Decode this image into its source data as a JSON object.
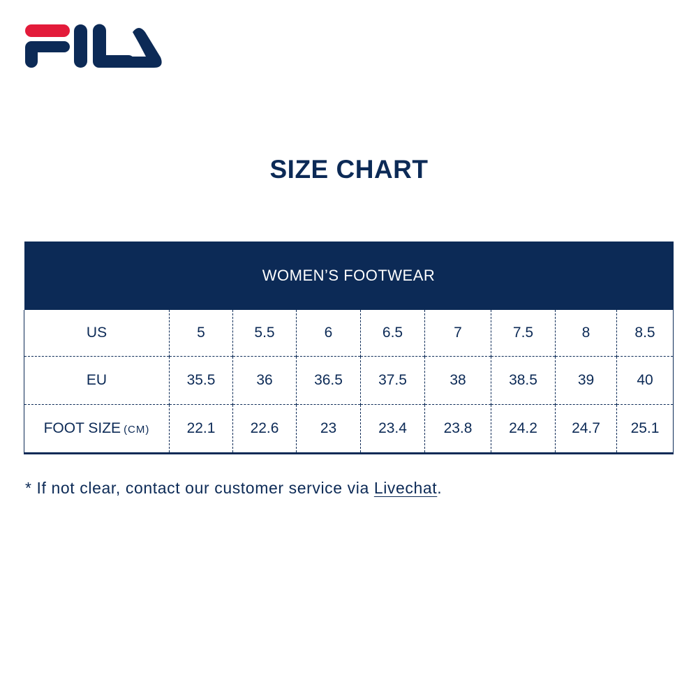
{
  "brand": {
    "logo_text": "FILA",
    "colors": {
      "navy": "#0c2a56",
      "red": "#e31b3a"
    }
  },
  "title": "SIZE CHART",
  "table": {
    "header": "WOMEN’S FOOTWEAR",
    "rows": [
      {
        "label": "US",
        "unit": "",
        "values": [
          "5",
          "5.5",
          "6",
          "6.5",
          "7",
          "7.5",
          "8",
          "8.5"
        ]
      },
      {
        "label": "EU",
        "unit": "",
        "values": [
          "35.5",
          "36",
          "36.5",
          "37.5",
          "38",
          "38.5",
          "39",
          "40"
        ]
      },
      {
        "label": "FOOT SIZE",
        "unit": "(CM)",
        "values": [
          "22.1",
          "22.6",
          "23",
          "23.4",
          "23.8",
          "24.2",
          "24.7",
          "25.1"
        ]
      }
    ]
  },
  "note": {
    "prefix": "* If not clear, contact our customer service via ",
    "link": "Livechat",
    "suffix": "."
  }
}
